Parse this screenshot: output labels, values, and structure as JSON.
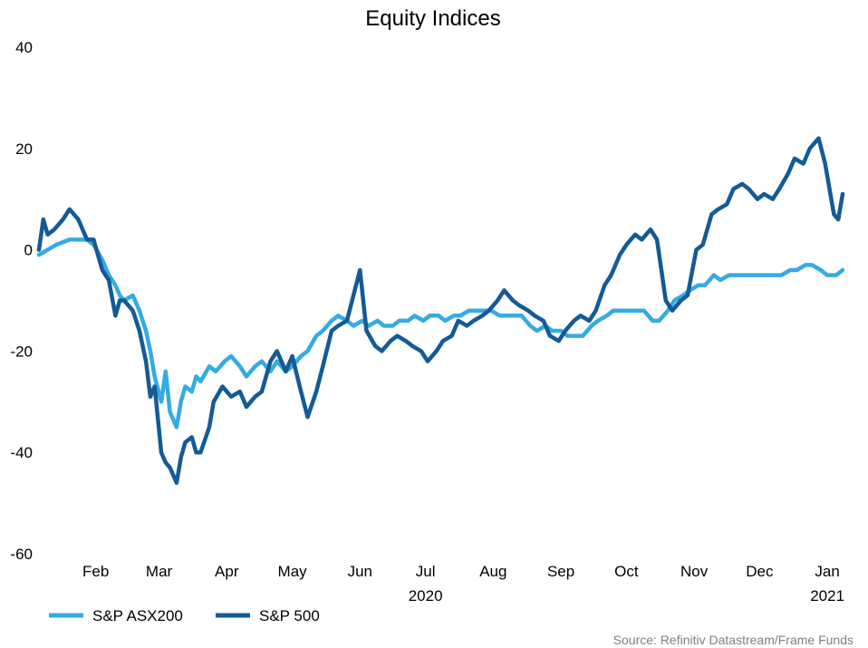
{
  "chart_data": {
    "type": "line",
    "title": "Equity Indices",
    "xlabel": "",
    "ylabel": "",
    "ylim": [
      -60,
      40
    ],
    "yticks": [
      40,
      20,
      0,
      -20,
      -40,
      -60
    ],
    "xlim": [
      "2020-01-20",
      "2021-01-22"
    ],
    "x_month_labels": [
      "Feb",
      "Mar",
      "Apr",
      "May",
      "Jun",
      "Jul",
      "Aug",
      "Sep",
      "Oct",
      "Nov",
      "Dec",
      "Jan"
    ],
    "x_year_labels": [
      "2020",
      "2021"
    ],
    "grid": false,
    "legend_position": "bottom-left",
    "source": "Source: Refinitiv Datastream/Frame Funds",
    "colors": {
      "asx": "#34ABE2",
      "sp500": "#145A96"
    },
    "series": [
      {
        "name": "S&P ASX200",
        "color_key": "asx",
        "points": [
          [
            "2020-01-20",
            -1
          ],
          [
            "2020-01-24",
            0
          ],
          [
            "2020-01-28",
            1
          ],
          [
            "2020-02-03",
            2
          ],
          [
            "2020-02-07",
            2
          ],
          [
            "2020-02-11",
            2
          ],
          [
            "2020-02-14",
            1
          ],
          [
            "2020-02-18",
            -2
          ],
          [
            "2020-02-21",
            -5
          ],
          [
            "2020-02-24",
            -7
          ],
          [
            "2020-02-26",
            -9
          ],
          [
            "2020-02-28",
            -10
          ],
          [
            "2020-03-03",
            -9
          ],
          [
            "2020-03-06",
            -12
          ],
          [
            "2020-03-09",
            -16
          ],
          [
            "2020-03-11",
            -20
          ],
          [
            "2020-03-13",
            -25
          ],
          [
            "2020-03-16",
            -30
          ],
          [
            "2020-03-18",
            -24
          ],
          [
            "2020-03-20",
            -32
          ],
          [
            "2020-03-23",
            -35
          ],
          [
            "2020-03-25",
            -30
          ],
          [
            "2020-03-27",
            -27
          ],
          [
            "2020-03-30",
            -28
          ],
          [
            "2020-04-01",
            -25
          ],
          [
            "2020-04-03",
            -26
          ],
          [
            "2020-04-07",
            -23
          ],
          [
            "2020-04-10",
            -24
          ],
          [
            "2020-04-14",
            -22
          ],
          [
            "2020-04-17",
            -21
          ],
          [
            "2020-04-21",
            -23
          ],
          [
            "2020-04-24",
            -25
          ],
          [
            "2020-04-28",
            -23
          ],
          [
            "2020-05-01",
            -22
          ],
          [
            "2020-05-05",
            -24
          ],
          [
            "2020-05-08",
            -22
          ],
          [
            "2020-05-12",
            -24
          ],
          [
            "2020-05-15",
            -23
          ],
          [
            "2020-05-19",
            -21
          ],
          [
            "2020-05-22",
            -20
          ],
          [
            "2020-05-26",
            -17
          ],
          [
            "2020-05-29",
            -16
          ],
          [
            "2020-06-02",
            -14
          ],
          [
            "2020-06-05",
            -13
          ],
          [
            "2020-06-09",
            -14
          ],
          [
            "2020-06-12",
            -15
          ],
          [
            "2020-06-16",
            -14
          ],
          [
            "2020-06-19",
            -15
          ],
          [
            "2020-06-23",
            -14
          ],
          [
            "2020-06-26",
            -15
          ],
          [
            "2020-06-30",
            -15
          ],
          [
            "2020-07-03",
            -14
          ],
          [
            "2020-07-07",
            -14
          ],
          [
            "2020-07-10",
            -13
          ],
          [
            "2020-07-14",
            -14
          ],
          [
            "2020-07-17",
            -13
          ],
          [
            "2020-07-21",
            -13
          ],
          [
            "2020-07-24",
            -14
          ],
          [
            "2020-07-28",
            -13
          ],
          [
            "2020-07-31",
            -13
          ],
          [
            "2020-08-04",
            -12
          ],
          [
            "2020-08-07",
            -12
          ],
          [
            "2020-08-11",
            -12
          ],
          [
            "2020-08-14",
            -12
          ],
          [
            "2020-08-18",
            -13
          ],
          [
            "2020-08-21",
            -13
          ],
          [
            "2020-08-25",
            -13
          ],
          [
            "2020-08-28",
            -13
          ],
          [
            "2020-09-01",
            -15
          ],
          [
            "2020-09-04",
            -16
          ],
          [
            "2020-09-08",
            -15
          ],
          [
            "2020-09-11",
            -16
          ],
          [
            "2020-09-15",
            -16
          ],
          [
            "2020-09-18",
            -17
          ],
          [
            "2020-09-22",
            -17
          ],
          [
            "2020-09-25",
            -17
          ],
          [
            "2020-09-29",
            -15
          ],
          [
            "2020-10-02",
            -14
          ],
          [
            "2020-10-06",
            -13
          ],
          [
            "2020-10-09",
            -12
          ],
          [
            "2020-10-13",
            -12
          ],
          [
            "2020-10-16",
            -12
          ],
          [
            "2020-10-20",
            -12
          ],
          [
            "2020-10-23",
            -12
          ],
          [
            "2020-10-27",
            -14
          ],
          [
            "2020-10-30",
            -14
          ],
          [
            "2020-11-03",
            -12
          ],
          [
            "2020-11-06",
            -10
          ],
          [
            "2020-11-10",
            -9
          ],
          [
            "2020-11-13",
            -8
          ],
          [
            "2020-11-17",
            -7
          ],
          [
            "2020-11-20",
            -7
          ],
          [
            "2020-11-24",
            -5
          ],
          [
            "2020-11-27",
            -6
          ],
          [
            "2020-12-01",
            -5
          ],
          [
            "2020-12-04",
            -5
          ],
          [
            "2020-12-08",
            -5
          ],
          [
            "2020-12-11",
            -5
          ],
          [
            "2020-12-15",
            -5
          ],
          [
            "2020-12-18",
            -5
          ],
          [
            "2020-12-22",
            -5
          ],
          [
            "2020-12-25",
            -5
          ],
          [
            "2020-12-29",
            -4
          ],
          [
            "2021-01-01",
            -4
          ],
          [
            "2021-01-05",
            -3
          ],
          [
            "2021-01-08",
            -3
          ],
          [
            "2021-01-12",
            -4
          ],
          [
            "2021-01-15",
            -5
          ],
          [
            "2021-01-19",
            -5
          ],
          [
            "2021-01-22",
            -4
          ]
        ]
      },
      {
        "name": "S&P 500",
        "color_key": "sp500",
        "points": [
          [
            "2020-01-20",
            0
          ],
          [
            "2020-01-22",
            6
          ],
          [
            "2020-01-24",
            3
          ],
          [
            "2020-01-27",
            4
          ],
          [
            "2020-01-31",
            6
          ],
          [
            "2020-02-03",
            8
          ],
          [
            "2020-02-05",
            7
          ],
          [
            "2020-02-07",
            6
          ],
          [
            "2020-02-11",
            2
          ],
          [
            "2020-02-14",
            2
          ],
          [
            "2020-02-18",
            -4
          ],
          [
            "2020-02-21",
            -6
          ],
          [
            "2020-02-24",
            -13
          ],
          [
            "2020-02-26",
            -10
          ],
          [
            "2020-02-28",
            -10
          ],
          [
            "2020-03-03",
            -12
          ],
          [
            "2020-03-06",
            -16
          ],
          [
            "2020-03-09",
            -22
          ],
          [
            "2020-03-11",
            -29
          ],
          [
            "2020-03-13",
            -27
          ],
          [
            "2020-03-16",
            -40
          ],
          [
            "2020-03-18",
            -42
          ],
          [
            "2020-03-20",
            -43
          ],
          [
            "2020-03-23",
            -46
          ],
          [
            "2020-03-25",
            -41
          ],
          [
            "2020-03-27",
            -38
          ],
          [
            "2020-03-30",
            -37
          ],
          [
            "2020-04-01",
            -40
          ],
          [
            "2020-04-03",
            -40
          ],
          [
            "2020-04-07",
            -35
          ],
          [
            "2020-04-09",
            -30
          ],
          [
            "2020-04-13",
            -27
          ],
          [
            "2020-04-17",
            -29
          ],
          [
            "2020-04-21",
            -28
          ],
          [
            "2020-04-24",
            -31
          ],
          [
            "2020-04-28",
            -29
          ],
          [
            "2020-05-01",
            -28
          ],
          [
            "2020-05-05",
            -22
          ],
          [
            "2020-05-08",
            -20
          ],
          [
            "2020-05-12",
            -24
          ],
          [
            "2020-05-15",
            -21
          ],
          [
            "2020-05-19",
            -28
          ],
          [
            "2020-05-22",
            -33
          ],
          [
            "2020-05-26",
            -28
          ],
          [
            "2020-05-29",
            -23
          ],
          [
            "2020-06-02",
            -16
          ],
          [
            "2020-06-05",
            -15
          ],
          [
            "2020-06-09",
            -14
          ],
          [
            "2020-06-12",
            -9
          ],
          [
            "2020-06-15",
            -4
          ],
          [
            "2020-06-18",
            -16
          ],
          [
            "2020-06-22",
            -19
          ],
          [
            "2020-06-25",
            -20
          ],
          [
            "2020-06-29",
            -18
          ],
          [
            "2020-07-02",
            -17
          ],
          [
            "2020-07-06",
            -18
          ],
          [
            "2020-07-09",
            -19
          ],
          [
            "2020-07-13",
            -20
          ],
          [
            "2020-07-16",
            -22
          ],
          [
            "2020-07-20",
            -20
          ],
          [
            "2020-07-23",
            -18
          ],
          [
            "2020-07-27",
            -17
          ],
          [
            "2020-07-30",
            -14
          ],
          [
            "2020-08-03",
            -15
          ],
          [
            "2020-08-06",
            -14
          ],
          [
            "2020-08-10",
            -13
          ],
          [
            "2020-08-13",
            -12
          ],
          [
            "2020-08-17",
            -10
          ],
          [
            "2020-08-20",
            -8
          ],
          [
            "2020-08-24",
            -10
          ],
          [
            "2020-08-27",
            -11
          ],
          [
            "2020-08-31",
            -12
          ],
          [
            "2020-09-03",
            -13
          ],
          [
            "2020-09-07",
            -14
          ],
          [
            "2020-09-10",
            -17
          ],
          [
            "2020-09-14",
            -18
          ],
          [
            "2020-09-17",
            -16
          ],
          [
            "2020-09-21",
            -14
          ],
          [
            "2020-09-24",
            -13
          ],
          [
            "2020-09-28",
            -14
          ],
          [
            "2020-10-01",
            -12
          ],
          [
            "2020-10-05",
            -7
          ],
          [
            "2020-10-08",
            -5
          ],
          [
            "2020-10-12",
            -1
          ],
          [
            "2020-10-15",
            1
          ],
          [
            "2020-10-19",
            3
          ],
          [
            "2020-10-22",
            2
          ],
          [
            "2020-10-26",
            4
          ],
          [
            "2020-10-29",
            2
          ],
          [
            "2020-11-02",
            -10
          ],
          [
            "2020-11-05",
            -12
          ],
          [
            "2020-11-09",
            -10
          ],
          [
            "2020-11-12",
            -9
          ],
          [
            "2020-11-16",
            0
          ],
          [
            "2020-11-19",
            1
          ],
          [
            "2020-11-23",
            7
          ],
          [
            "2020-11-26",
            8
          ],
          [
            "2020-11-30",
            9
          ],
          [
            "2020-12-03",
            12
          ],
          [
            "2020-12-07",
            13
          ],
          [
            "2020-12-10",
            12
          ],
          [
            "2020-12-14",
            10
          ],
          [
            "2020-12-17",
            11
          ],
          [
            "2020-12-21",
            10
          ],
          [
            "2020-12-24",
            12
          ],
          [
            "2020-12-28",
            15
          ],
          [
            "2020-12-31",
            18
          ],
          [
            "2021-01-04",
            17
          ],
          [
            "2021-01-07",
            20
          ],
          [
            "2021-01-11",
            22
          ],
          [
            "2021-01-14",
            17
          ],
          [
            "2021-01-18",
            7
          ],
          [
            "2021-01-20",
            6
          ],
          [
            "2021-01-22",
            11
          ]
        ]
      }
    ]
  }
}
